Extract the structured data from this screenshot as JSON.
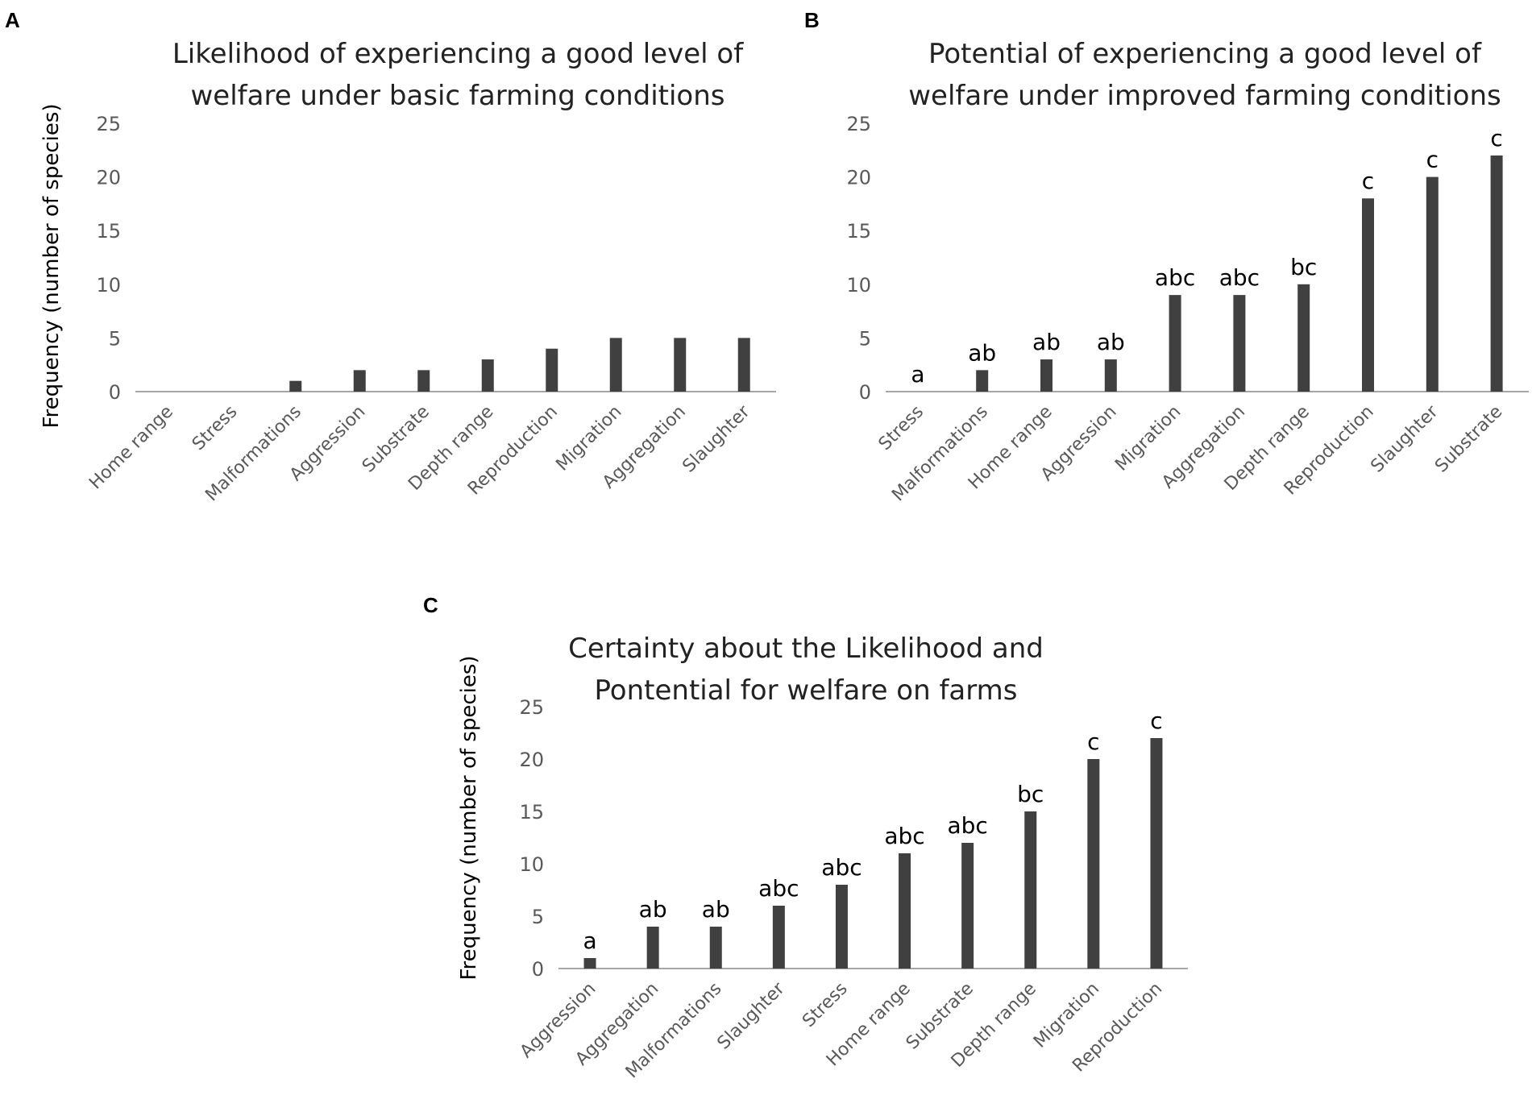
{
  "chart_data": [
    {
      "panel": "A",
      "type": "bar",
      "title_lines": [
        "Likelihood of experiencing a good level of",
        "welfare under basic farming conditions"
      ],
      "ylabel": "Frequency (number of species)",
      "xlabel": "",
      "ylim": [
        0,
        25
      ],
      "yticks": [
        0,
        5,
        10,
        15,
        20,
        25
      ],
      "categories": [
        "Home range",
        "Stress",
        "Malformations",
        "Aggression",
        "Substrate",
        "Depth range",
        "Reproduction",
        "Migration",
        "Aggregation",
        "Slaughter"
      ],
      "values": [
        0,
        0,
        1,
        2,
        2,
        3,
        4,
        5,
        5,
        5
      ],
      "sig_labels": [],
      "bar_color": "#404040",
      "axis_color": "#a6a6a6"
    },
    {
      "panel": "B",
      "type": "bar",
      "title_lines": [
        "Potential of experiencing a good level of",
        "welfare under improved farming conditions"
      ],
      "ylabel": "",
      "xlabel": "",
      "ylim": [
        0,
        25
      ],
      "yticks": [
        0,
        5,
        10,
        15,
        20,
        25
      ],
      "categories": [
        "Stress",
        "Malformations",
        "Home range",
        "Aggression",
        "Migration",
        "Aggregation",
        "Depth range",
        "Reproduction",
        "Slaughter",
        "Substrate"
      ],
      "values": [
        0,
        2,
        3,
        3,
        9,
        9,
        10,
        18,
        20,
        22
      ],
      "sig_labels": [
        "a",
        "ab",
        "ab",
        "ab",
        "abc",
        "abc",
        "bc",
        "c",
        "c",
        "c"
      ],
      "bar_color": "#404040",
      "axis_color": "#a6a6a6"
    },
    {
      "panel": "C",
      "type": "bar",
      "title_lines": [
        "Certainty about the Likelihood and",
        "Pontential for welfare on farms"
      ],
      "ylabel": "Frequency (number of species)",
      "xlabel": "",
      "ylim": [
        0,
        25
      ],
      "yticks": [
        0,
        5,
        10,
        15,
        20,
        25
      ],
      "categories": [
        "Aggression",
        "Aggregation",
        "Malformations",
        "Slaughter",
        "Stress",
        "Home range",
        "Substrate",
        "Depth range",
        "Migration",
        "Reproduction"
      ],
      "values": [
        1,
        4,
        4,
        6,
        8,
        11,
        12,
        15,
        20,
        22
      ],
      "sig_labels": [
        "a",
        "ab",
        "ab",
        "abc",
        "abc",
        "abc",
        "abc",
        "bc",
        "c",
        "c"
      ],
      "bar_color": "#404040",
      "axis_color": "#a6a6a6"
    }
  ]
}
